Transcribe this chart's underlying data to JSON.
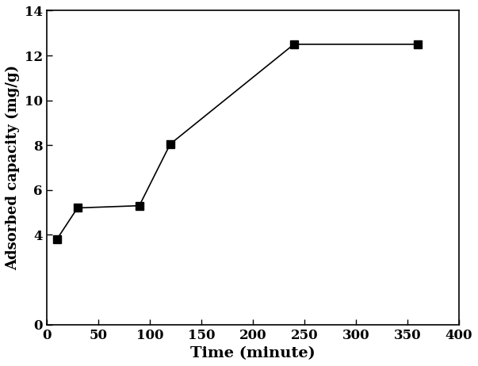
{
  "x": [
    10,
    30,
    90,
    120,
    240,
    360
  ],
  "y": [
    3.8,
    5.2,
    5.3,
    8.05,
    12.5,
    12.5
  ],
  "xlabel": "Time (minute)",
  "ylabel": "Adsorbed capacity (mg/g)",
  "xlim": [
    0,
    400
  ],
  "ylim": [
    0,
    14
  ],
  "xticks": [
    0,
    50,
    100,
    150,
    200,
    250,
    300,
    350,
    400
  ],
  "yticks": [
    0,
    4,
    6,
    8,
    10,
    12,
    14
  ],
  "line_color": "#000000",
  "marker": "s",
  "marker_color": "#000000",
  "marker_size": 7,
  "line_width": 1.2,
  "xlabel_fontsize": 14,
  "ylabel_fontsize": 13,
  "tick_fontsize": 12,
  "background_color": "#ffffff"
}
